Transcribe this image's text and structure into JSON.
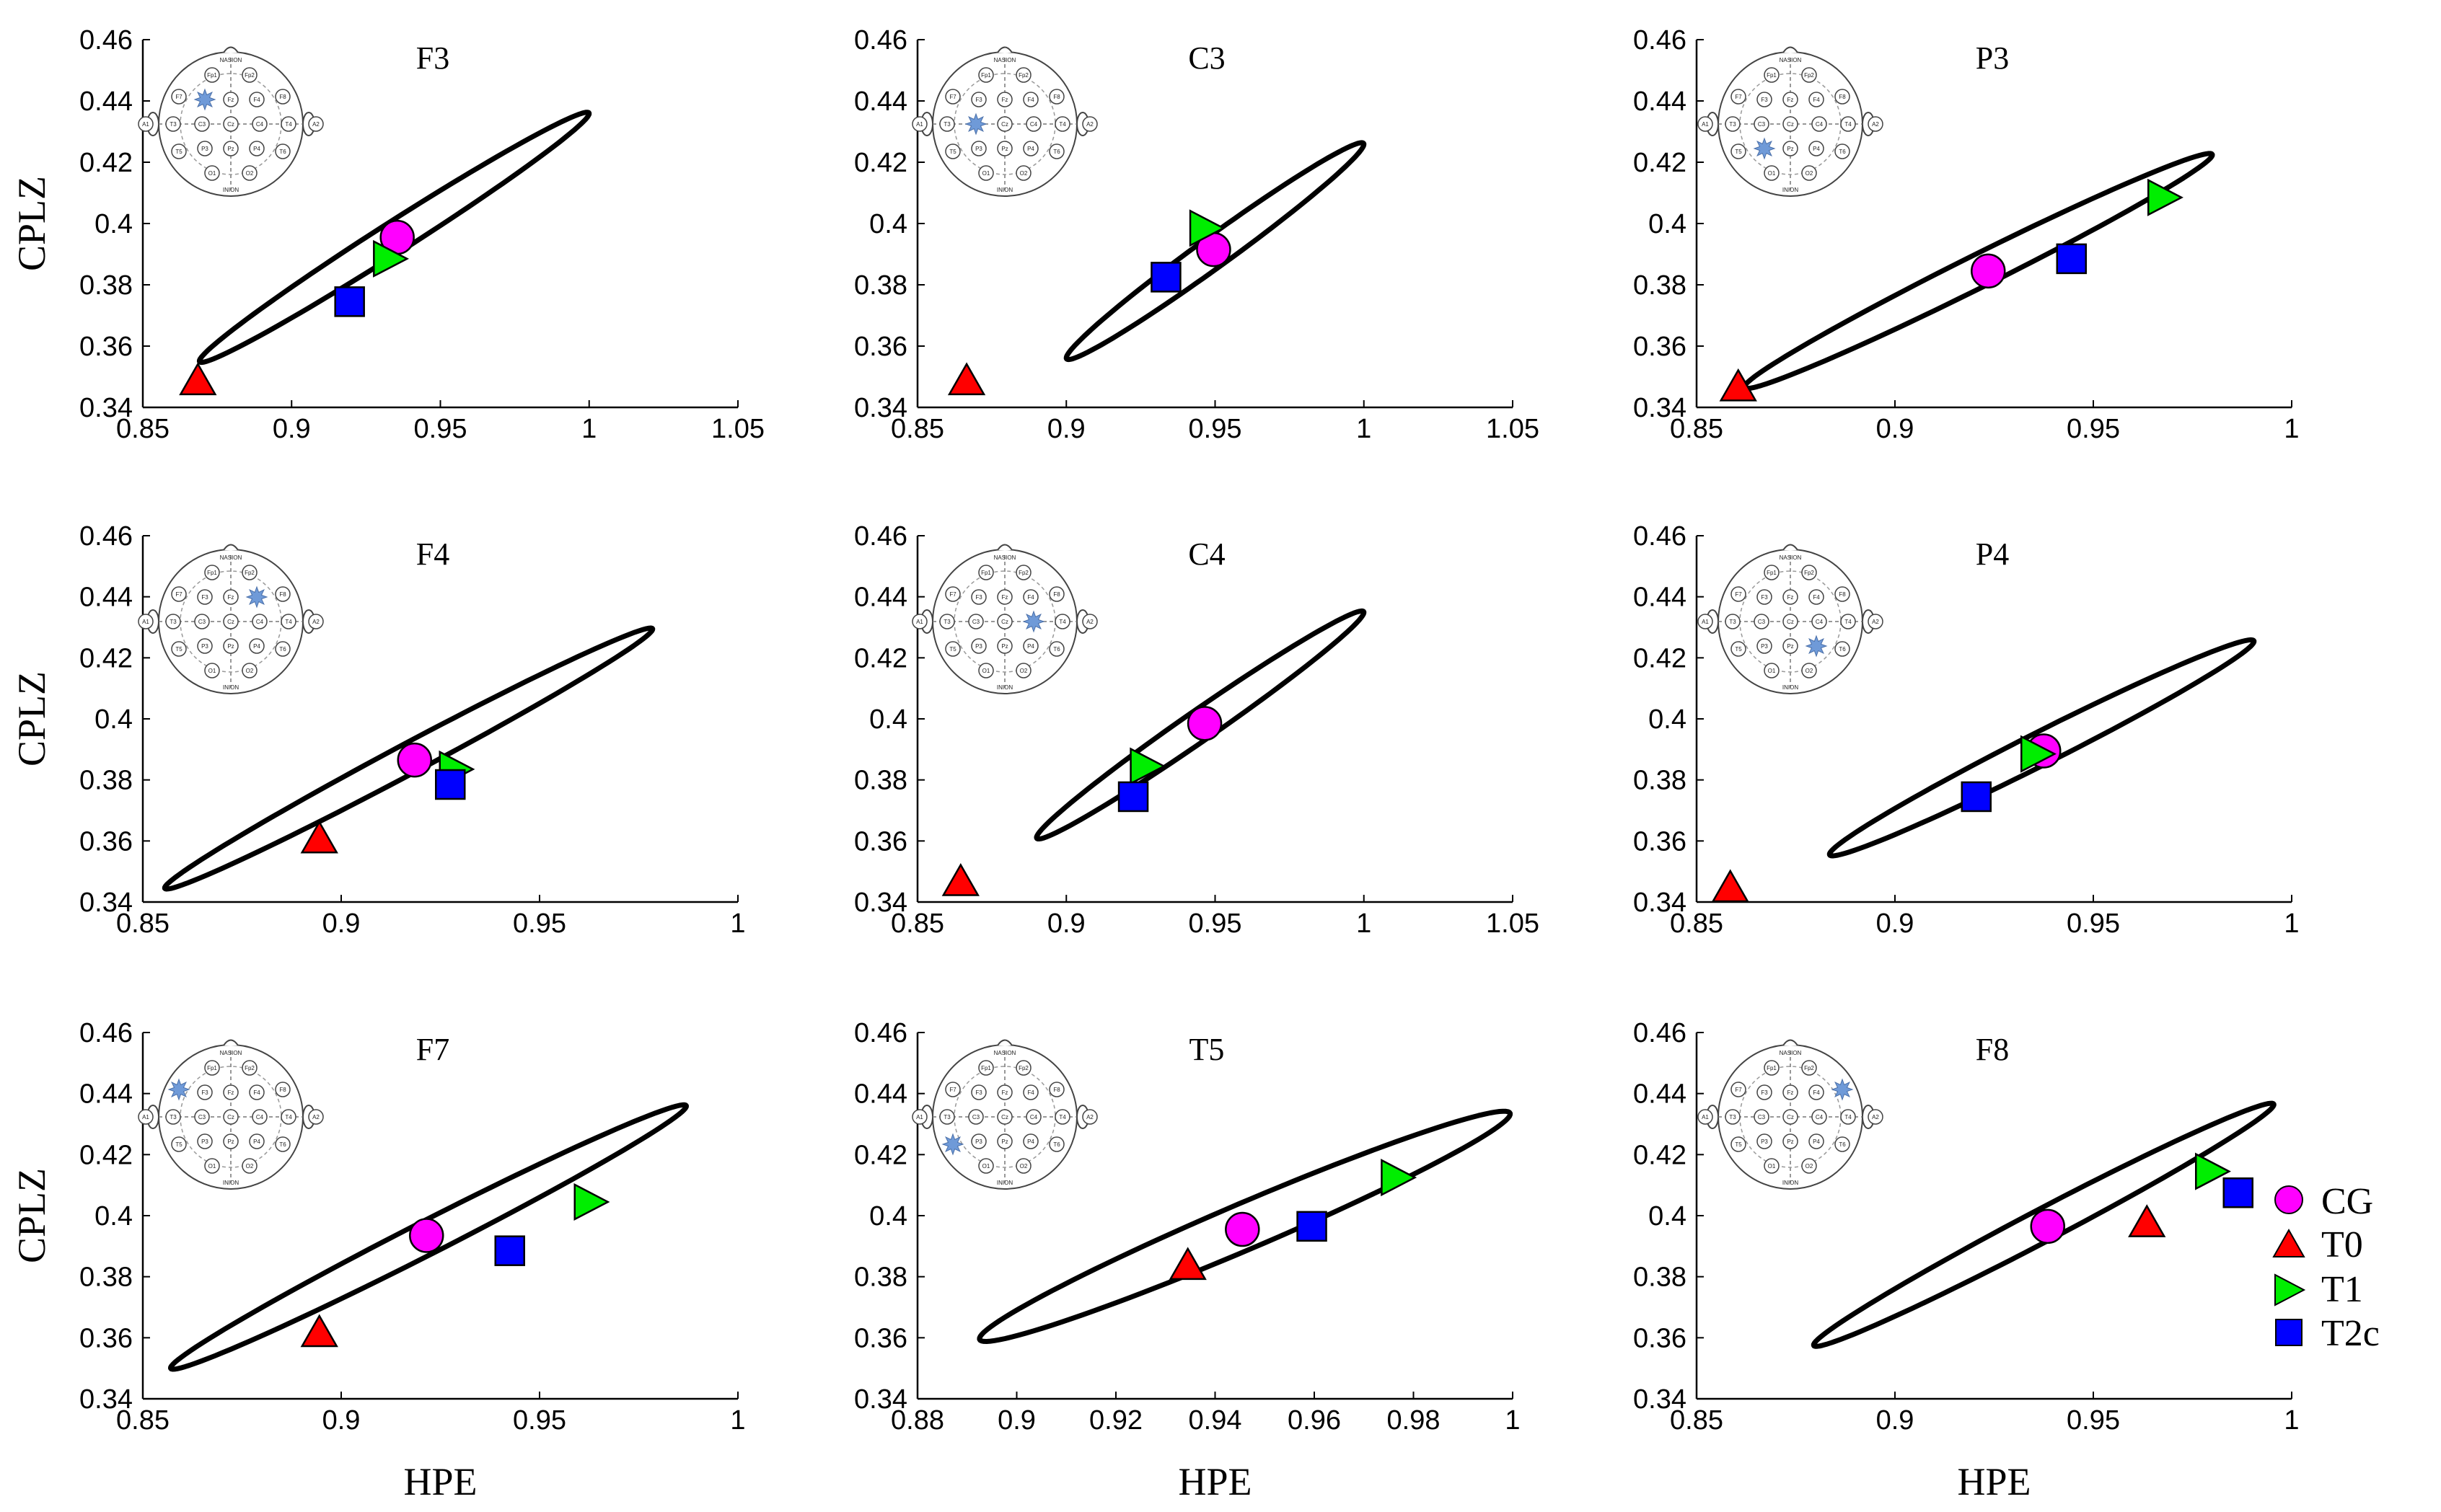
{
  "figure": {
    "y_axis_label": "CPLZ",
    "x_axis_label": "HPE"
  },
  "legend": [
    {
      "name": "CG",
      "marker": "circle",
      "color": "#ff00ff"
    },
    {
      "name": "T0",
      "marker": "triangle-up",
      "color": "#ff0000"
    },
    {
      "name": "T1",
      "marker": "triangle-right",
      "color": "#00ee00"
    },
    {
      "name": "T2c",
      "marker": "square",
      "color": "#0000ff"
    }
  ],
  "electrode_map": {
    "top_label": "NASION",
    "bottom_label": "INION",
    "highlight_color": "#6f9ad8",
    "electrodes": [
      "Fp1",
      "Fp2",
      "F7",
      "F3",
      "Fz",
      "F4",
      "F8",
      "A1",
      "T3",
      "C3",
      "Cz",
      "C4",
      "T4",
      "A2",
      "T5",
      "P3",
      "Pz",
      "P4",
      "T6",
      "O1",
      "O2"
    ]
  },
  "chart_data": [
    {
      "type": "scatter",
      "title": "F3",
      "xlabel": "",
      "ylabel": "CPLZ",
      "xlim": [
        0.85,
        1.05
      ],
      "ylim": [
        0.34,
        0.46
      ],
      "xticks": [
        0.85,
        0.9,
        0.95,
        1,
        1.05
      ],
      "yticks": [
        0.34,
        0.36,
        0.38,
        0.4,
        0.42,
        0.44,
        0.46
      ],
      "xtick_labels": [
        "0.85",
        "0.9",
        "0.95",
        "1",
        "1.05"
      ],
      "ytick_labels": [
        "0.34",
        "0.36",
        "0.38",
        "0.4",
        "0.42",
        "0.44",
        "0.46"
      ],
      "highlight_electrode": "F3",
      "ellipse": {
        "center": [
          0.9345,
          0.3955
        ],
        "major_end": [
          1.0,
          0.436
        ],
        "minor_offset": [
          0.0013,
          -0.0051
        ]
      },
      "points": [
        {
          "series": "CG",
          "x": 0.9355,
          "y": 0.3955
        },
        {
          "series": "T0",
          "x": 0.8685,
          "y": 0.3485
        },
        {
          "series": "T1",
          "x": 0.9325,
          "y": 0.3885
        },
        {
          "series": "T2c",
          "x": 0.9195,
          "y": 0.3745
        }
      ]
    },
    {
      "type": "scatter",
      "title": "C3",
      "xlabel": "",
      "ylabel": "",
      "xlim": [
        0.85,
        1.05
      ],
      "ylim": [
        0.34,
        0.46
      ],
      "xticks": [
        0.85,
        0.9,
        0.95,
        1,
        1.05
      ],
      "yticks": [
        0.34,
        0.36,
        0.38,
        0.4,
        0.42,
        0.44,
        0.46
      ],
      "xtick_labels": [
        "0.85",
        "0.9",
        "0.95",
        "1",
        "1.05"
      ],
      "ytick_labels": [
        "0.34",
        "0.36",
        "0.38",
        "0.4",
        "0.42",
        "0.44",
        "0.46"
      ],
      "highlight_electrode": "C3",
      "ellipse": {
        "center": [
          0.95,
          0.391
        ],
        "major_end": [
          1.0,
          0.426
        ],
        "minor_offset": [
          0.0013,
          -0.0052
        ]
      },
      "points": [
        {
          "series": "CG",
          "x": 0.9495,
          "y": 0.3915
        },
        {
          "series": "T0",
          "x": 0.8665,
          "y": 0.3485
        },
        {
          "series": "T1",
          "x": 0.9465,
          "y": 0.3985
        },
        {
          "series": "T2c",
          "x": 0.9335,
          "y": 0.3825
        }
      ]
    },
    {
      "type": "scatter",
      "title": "P3",
      "xlabel": "",
      "ylabel": "",
      "xlim": [
        0.85,
        1.0
      ],
      "ylim": [
        0.34,
        0.46
      ],
      "xticks": [
        0.85,
        0.9,
        0.95,
        1
      ],
      "yticks": [
        0.34,
        0.36,
        0.38,
        0.4,
        0.42,
        0.44,
        0.46
      ],
      "xtick_labels": [
        "0.85",
        "0.9",
        "0.95",
        "1"
      ],
      "ytick_labels": [
        "0.34",
        "0.36",
        "0.38",
        "0.4",
        "0.42",
        "0.44",
        "0.46"
      ],
      "highlight_electrode": "P3",
      "ellipse": {
        "center": [
          0.921,
          0.3845
        ],
        "major_end": [
          0.98,
          0.4225
        ],
        "minor_offset": [
          0.0011,
          -0.0052
        ]
      },
      "points": [
        {
          "series": "CG",
          "x": 0.9235,
          "y": 0.3845
        },
        {
          "series": "T0",
          "x": 0.8605,
          "y": 0.3465
        },
        {
          "series": "T1",
          "x": 0.9675,
          "y": 0.4085
        },
        {
          "series": "T2c",
          "x": 0.9445,
          "y": 0.3885
        }
      ]
    },
    {
      "type": "scatter",
      "title": "F4",
      "xlabel": "",
      "ylabel": "CPLZ",
      "xlim": [
        0.85,
        1.0
      ],
      "ylim": [
        0.34,
        0.46
      ],
      "xticks": [
        0.85,
        0.9,
        0.95,
        1
      ],
      "yticks": [
        0.34,
        0.36,
        0.38,
        0.4,
        0.42,
        0.44,
        0.46
      ],
      "xtick_labels": [
        "0.85",
        "0.9",
        "0.95",
        "1"
      ],
      "ytick_labels": [
        "0.34",
        "0.36",
        "0.38",
        "0.4",
        "0.42",
        "0.44",
        "0.46"
      ],
      "highlight_electrode": "F4",
      "ellipse": {
        "center": [
          0.917,
          0.387
        ],
        "major_end": [
          0.9785,
          0.4295
        ],
        "minor_offset": [
          0.0012,
          -0.0047
        ]
      },
      "points": [
        {
          "series": "CG",
          "x": 0.9185,
          "y": 0.3865
        },
        {
          "series": "T0",
          "x": 0.8945,
          "y": 0.3605
        },
        {
          "series": "T1",
          "x": 0.9285,
          "y": 0.3835
        },
        {
          "series": "T2c",
          "x": 0.9275,
          "y": 0.3785
        }
      ]
    },
    {
      "type": "scatter",
      "title": "C4",
      "xlabel": "",
      "ylabel": "",
      "xlim": [
        0.85,
        1.05
      ],
      "ylim": [
        0.34,
        0.46
      ],
      "xticks": [
        0.85,
        0.9,
        0.95,
        1,
        1.05
      ],
      "yticks": [
        0.34,
        0.36,
        0.38,
        0.4,
        0.42,
        0.44,
        0.46
      ],
      "xtick_labels": [
        "0.85",
        "0.9",
        "0.95",
        "1",
        "1.05"
      ],
      "ytick_labels": [
        "0.34",
        "0.36",
        "0.38",
        "0.4",
        "0.42",
        "0.44",
        "0.46"
      ],
      "highlight_electrode": "C4",
      "ellipse": {
        "center": [
          0.945,
          0.398
        ],
        "major_end": [
          1.0,
          0.435
        ],
        "minor_offset": [
          0.0013,
          -0.0051
        ]
      },
      "points": [
        {
          "series": "CG",
          "x": 0.9465,
          "y": 0.3985
        },
        {
          "series": "T0",
          "x": 0.8645,
          "y": 0.3465
        },
        {
          "series": "T1",
          "x": 0.9265,
          "y": 0.3845
        },
        {
          "series": "T2c",
          "x": 0.9225,
          "y": 0.3745
        }
      ]
    },
    {
      "type": "scatter",
      "title": "P4",
      "xlabel": "",
      "ylabel": "",
      "xlim": [
        0.85,
        1.0
      ],
      "ylim": [
        0.34,
        0.46
      ],
      "xticks": [
        0.85,
        0.9,
        0.95,
        1
      ],
      "yticks": [
        0.34,
        0.36,
        0.38,
        0.4,
        0.42,
        0.44,
        0.46
      ],
      "xtick_labels": [
        "0.85",
        "0.9",
        "0.95",
        "1"
      ],
      "ytick_labels": [
        "0.34",
        "0.36",
        "0.38",
        "0.4",
        "0.42",
        "0.44",
        "0.46"
      ],
      "highlight_electrode": "P4",
      "ellipse": {
        "center": [
          0.937,
          0.3905
        ],
        "major_end": [
          0.9905,
          0.4255
        ],
        "minor_offset": [
          0.0011,
          -0.0052
        ]
      },
      "points": [
        {
          "series": "CG",
          "x": 0.9375,
          "y": 0.3895
        },
        {
          "series": "T0",
          "x": 0.8585,
          "y": 0.3445
        },
        {
          "series": "T1",
          "x": 0.9355,
          "y": 0.3885
        },
        {
          "series": "T2c",
          "x": 0.9205,
          "y": 0.3745
        }
      ]
    },
    {
      "type": "scatter",
      "title": "F7",
      "xlabel": "HPE",
      "ylabel": "CPLZ",
      "xlim": [
        0.85,
        1.0
      ],
      "ylim": [
        0.34,
        0.46
      ],
      "xticks": [
        0.85,
        0.9,
        0.95,
        1
      ],
      "yticks": [
        0.34,
        0.36,
        0.38,
        0.4,
        0.42,
        0.44,
        0.46
      ],
      "xtick_labels": [
        "0.85",
        "0.9",
        "0.95",
        "1"
      ],
      "ytick_labels": [
        "0.34",
        "0.36",
        "0.38",
        "0.4",
        "0.42",
        "0.44",
        "0.46"
      ],
      "highlight_electrode": "F7",
      "ellipse": {
        "center": [
          0.922,
          0.393
        ],
        "major_end": [
          0.987,
          0.436
        ],
        "minor_offset": [
          0.0013,
          -0.0052
        ]
      },
      "points": [
        {
          "series": "CG",
          "x": 0.9215,
          "y": 0.3935
        },
        {
          "series": "T0",
          "x": 0.8945,
          "y": 0.3615
        },
        {
          "series": "T1",
          "x": 0.9625,
          "y": 0.4045
        },
        {
          "series": "T2c",
          "x": 0.9425,
          "y": 0.3885
        }
      ]
    },
    {
      "type": "scatter",
      "title": "T5",
      "xlabel": "HPE",
      "ylabel": "",
      "xlim": [
        0.88,
        1.0
      ],
      "ylim": [
        0.34,
        0.46
      ],
      "xticks": [
        0.88,
        0.9,
        0.92,
        0.94,
        0.96,
        0.98,
        1
      ],
      "yticks": [
        0.34,
        0.36,
        0.38,
        0.4,
        0.42,
        0.44,
        0.46
      ],
      "xtick_labels": [
        "0.88",
        "0.9",
        "0.92",
        "0.94",
        "0.96",
        "0.98",
        "1"
      ],
      "ytick_labels": [
        "0.34",
        "0.36",
        "0.38",
        "0.4",
        "0.42",
        "0.44",
        "0.46"
      ],
      "highlight_electrode": "T5",
      "ellipse": {
        "center": [
          0.946,
          0.3965
        ],
        "major_end": [
          0.9995,
          0.4335
        ],
        "minor_offset": [
          0.0013,
          -0.0073
        ]
      },
      "points": [
        {
          "series": "CG",
          "x": 0.9455,
          "y": 0.3955
        },
        {
          "series": "T0",
          "x": 0.9345,
          "y": 0.3835
        },
        {
          "series": "T1",
          "x": 0.9765,
          "y": 0.4125
        },
        {
          "series": "T2c",
          "x": 0.9595,
          "y": 0.3965
        }
      ]
    },
    {
      "type": "scatter",
      "title": "F8",
      "xlabel": "HPE",
      "ylabel": "",
      "xlim": [
        0.85,
        1.0
      ],
      "ylim": [
        0.34,
        0.46
      ],
      "xticks": [
        0.85,
        0.9,
        0.95,
        1
      ],
      "yticks": [
        0.34,
        0.36,
        0.38,
        0.4,
        0.42,
        0.44,
        0.46
      ],
      "xtick_labels": [
        "0.85",
        "0.9",
        "0.95",
        "1"
      ],
      "ytick_labels": [
        "0.34",
        "0.36",
        "0.38",
        "0.4",
        "0.42",
        "0.44",
        "0.46"
      ],
      "highlight_electrode": "F8",
      "ellipse": {
        "center": [
          0.9375,
          0.397
        ],
        "major_end": [
          0.9955,
          0.4365
        ],
        "minor_offset": [
          0.0012,
          -0.0051
        ]
      },
      "points": [
        {
          "series": "CG",
          "x": 0.9385,
          "y": 0.3965
        },
        {
          "series": "T0",
          "x": 0.9635,
          "y": 0.3975
        },
        {
          "series": "T1",
          "x": 0.9795,
          "y": 0.4145
        },
        {
          "series": "T2c",
          "x": 0.9865,
          "y": 0.4075
        }
      ]
    }
  ]
}
